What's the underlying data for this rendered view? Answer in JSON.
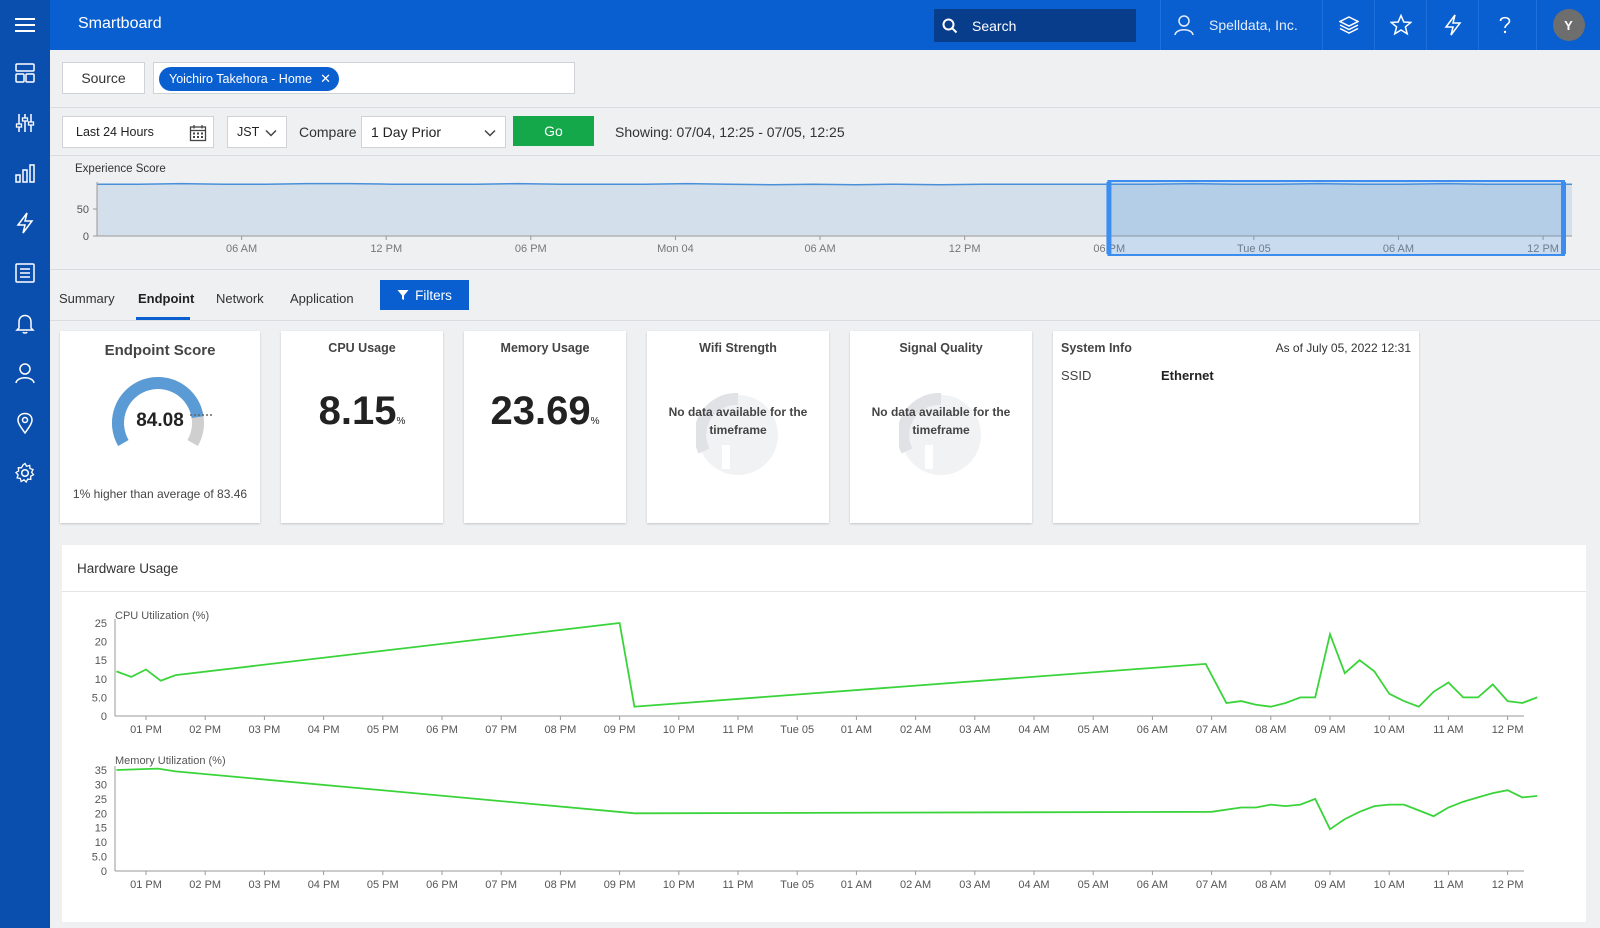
{
  "topbar": {
    "app_title": "Smartboard",
    "search_placeholder": "Search",
    "org_name": "Spelldata, Inc.",
    "avatar_initial": "Y"
  },
  "source": {
    "button_label": "Source",
    "chip_label": "Yoichiro Takehora - Home"
  },
  "controls": {
    "date_range": "Last 24 Hours",
    "timezone": "JST",
    "compare_label": "Compare",
    "compare_value": "1 Day Prior",
    "go_label": "Go",
    "showing": "Showing: 07/04, 12:25 - 07/05, 12:25"
  },
  "experience_chart": {
    "title": "Experience Score"
  },
  "tabs": [
    {
      "label": "Summary"
    },
    {
      "label": "Endpoint"
    },
    {
      "label": "Network"
    },
    {
      "label": "Application"
    }
  ],
  "filters_label": "Filters",
  "cards": {
    "endpoint_score": {
      "title": "Endpoint Score",
      "value": "84.08",
      "score_fraction": 0.84,
      "note": "1% higher than average of 83.46"
    },
    "cpu": {
      "title": "CPU Usage",
      "value": "8.15",
      "unit": "%"
    },
    "memory": {
      "title": "Memory Usage",
      "value": "23.69",
      "unit": "%"
    },
    "wifi": {
      "title": "Wifi Strength",
      "message": "No data available for the timeframe"
    },
    "signal": {
      "title": "Signal Quality",
      "message": "No data available for the timeframe"
    },
    "system_info": {
      "title": "System Info",
      "as_of": "As of July 05, 2022 12:31",
      "ssid_label": "SSID",
      "ssid_value": "Ethernet"
    }
  },
  "hardware": {
    "title": "Hardware Usage"
  },
  "colors": {
    "primary": "#0a5fd0",
    "sidebar": "#0b4fae",
    "go_green": "#14a84a",
    "line_green": "#3ad43a",
    "gauge_blue": "#5b9bd5",
    "gauge_gray": "#cfcfcf"
  },
  "chart_data": [
    {
      "type": "area",
      "title": "Experience Score",
      "x_ticks": [
        "06 AM",
        "12 PM",
        "06 PM",
        "Mon 04",
        "06 AM",
        "12 PM",
        "06 PM",
        "Tue 05",
        "06 AM",
        "12 PM"
      ],
      "y_ticks": [
        0,
        50
      ],
      "ylim": [
        0,
        100
      ],
      "values": [
        96,
        96,
        97,
        96,
        96,
        97,
        97,
        96,
        96,
        96,
        97,
        96,
        96,
        96,
        97,
        96,
        95,
        96,
        95,
        96,
        95,
        96,
        96,
        96,
        96,
        96,
        97,
        96,
        96,
        97,
        96,
        96,
        97,
        96,
        96,
        96
      ],
      "selection": {
        "from_index": 24,
        "to_index": 35
      }
    },
    {
      "type": "line",
      "title": "CPU Utilization (%)",
      "x_ticks": [
        "01 PM",
        "02 PM",
        "03 PM",
        "04 PM",
        "05 PM",
        "06 PM",
        "07 PM",
        "08 PM",
        "09 PM",
        "10 PM",
        "11 PM",
        "Tue 05",
        "01 AM",
        "02 AM",
        "03 AM",
        "04 AM",
        "05 AM",
        "06 AM",
        "07 AM",
        "08 AM",
        "09 AM",
        "10 AM",
        "11 AM",
        "12 PM"
      ],
      "y_ticks": [
        "0",
        "5.0",
        "10",
        "15",
        "20",
        "25"
      ],
      "ylim": [
        0,
        25
      ],
      "x": [
        -0.5,
        -0.25,
        0,
        0.25,
        0.5,
        8.0,
        8.25,
        17.9,
        18.25,
        18.5,
        18.75,
        19.0,
        19.25,
        19.5,
        19.75,
        20.0,
        20.25,
        20.5,
        20.75,
        21.0,
        21.25,
        21.5,
        21.75,
        22.0,
        22.25,
        22.5,
        22.75,
        23.0,
        23.25,
        23.5
      ],
      "y": [
        12,
        10.5,
        12.5,
        9.5,
        11,
        25,
        2.5,
        14,
        3.5,
        4,
        3,
        2.5,
        3.5,
        5,
        5,
        22,
        11.5,
        15,
        12,
        6,
        4,
        2.5,
        6.5,
        9,
        5,
        5,
        8.5,
        4,
        3.5,
        5
      ]
    },
    {
      "type": "line",
      "title": "Memory Utilization (%)",
      "x_ticks": [
        "01 PM",
        "02 PM",
        "03 PM",
        "04 PM",
        "05 PM",
        "06 PM",
        "07 PM",
        "08 PM",
        "09 PM",
        "10 PM",
        "11 PM",
        "Tue 05",
        "01 AM",
        "02 AM",
        "03 AM",
        "04 AM",
        "05 AM",
        "06 AM",
        "07 AM",
        "08 AM",
        "09 AM",
        "10 AM",
        "11 AM",
        "12 PM"
      ],
      "y_ticks": [
        "0",
        "5.0",
        "10",
        "15",
        "20",
        "25",
        "30",
        "35"
      ],
      "ylim": [
        0,
        35
      ],
      "x": [
        -0.5,
        0.2,
        0.5,
        8.25,
        18.0,
        18.5,
        18.75,
        19.0,
        19.25,
        19.5,
        19.75,
        20.0,
        20.25,
        20.5,
        20.75,
        21.0,
        21.25,
        21.5,
        21.75,
        22.0,
        22.25,
        22.5,
        22.75,
        23.0,
        23.25,
        23.5
      ],
      "y": [
        35,
        35.5,
        34.5,
        20,
        20.5,
        22,
        22,
        23,
        22.5,
        23,
        25,
        14.5,
        18,
        20.5,
        22.5,
        23,
        23,
        21,
        19,
        22,
        24,
        25.5,
        27,
        28,
        25.5,
        26
      ]
    }
  ]
}
